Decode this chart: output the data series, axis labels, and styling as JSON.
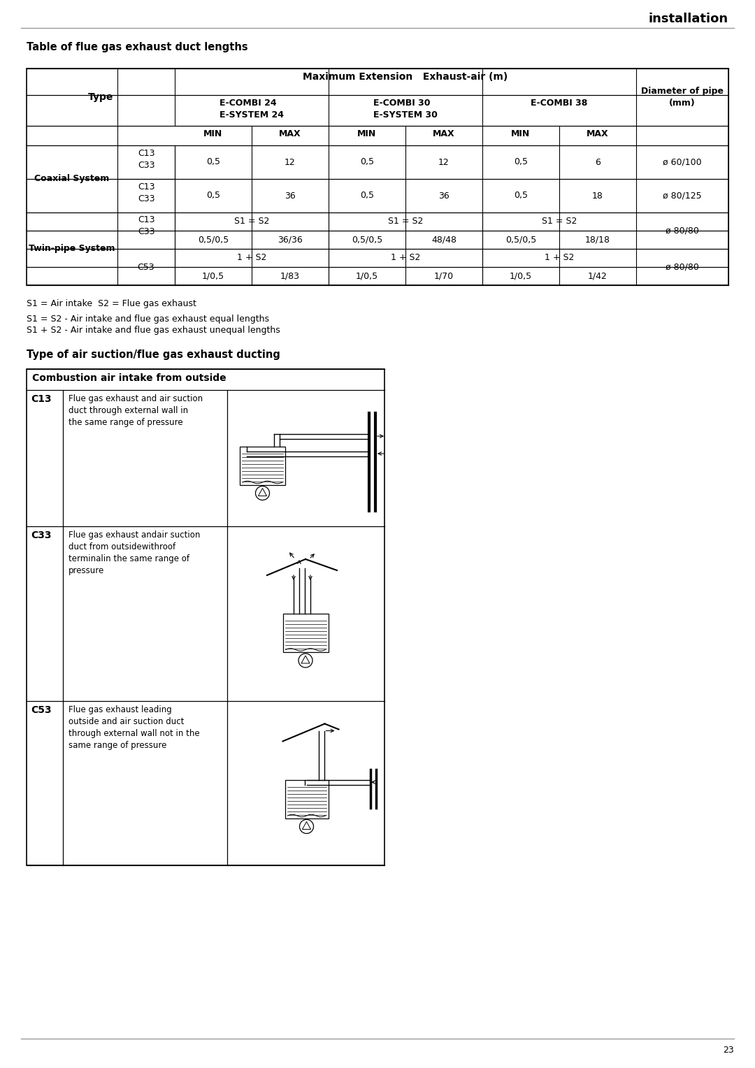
{
  "page_title": "installation",
  "section1_title": "Table of flue gas exhaust duct lengths",
  "section2_title": "Type of air suction/flue gas exhaust ducting",
  "table_header_row1": "Maximum Extension   Exhaust-air (m)",
  "table_min_max": [
    "MIN",
    "MAX",
    "MIN",
    "MAX",
    "MIN",
    "MAX"
  ],
  "table_type_col": "Type",
  "coaxial_label": "Coaxial System",
  "twin_label": "Twin-pipe System",
  "note1": "S1 = Air intake  S2 = Flue gas exhaust",
  "note2": "S1 = S2 - Air intake and flue gas exhaust equal lengths",
  "note3": "S1 + S2 - Air intake and flue gas exhaust unequal lengths",
  "combustion_header": "Combustion air intake from outside",
  "c13_code": "C13",
  "c13_text": "Flue gas exhaust and air suction\nduct through external wall in\nthe same range of pressure",
  "c33_code": "C33",
  "c33_text": "Flue gas exhaust andair suction\nduct from outsidewithroof\nterminalin the same range of\npressure",
  "c53_code": "C53",
  "c53_text": "Flue gas exhaust leading\noutside and air suction duct\nthrough external wall not in the\nsame range of pressure",
  "page_number": "23",
  "bg_color": "#ffffff"
}
